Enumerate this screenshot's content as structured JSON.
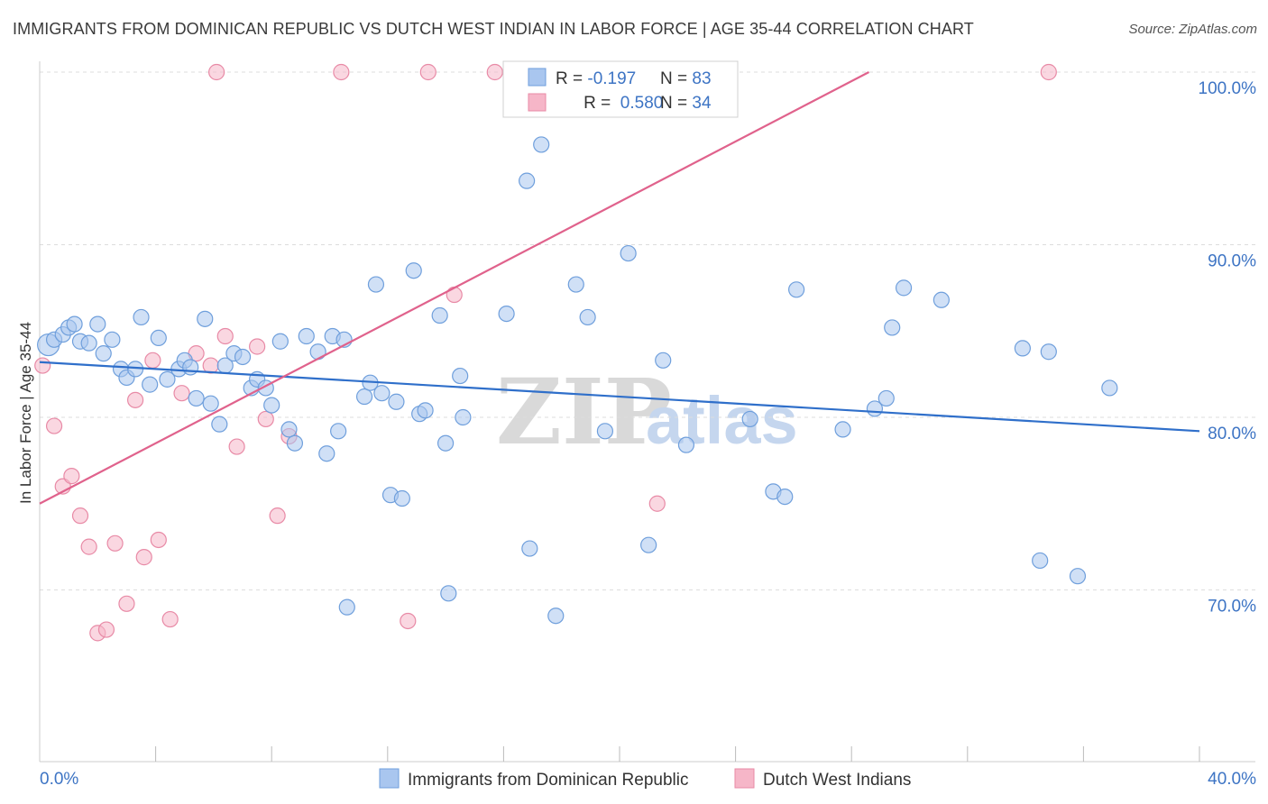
{
  "header": {
    "title": "IMMIGRANTS FROM DOMINICAN REPUBLIC VS DUTCH WEST INDIAN IN LABOR FORCE | AGE 35-44 CORRELATION CHART",
    "source": "Source: ZipAtlas.com"
  },
  "watermark": {
    "zip": "ZIP",
    "atlas": "atlas"
  },
  "legend": {
    "rows": [
      {
        "r_label": "R = ",
        "r_value": "-0.197",
        "n_label": "N = ",
        "n_value": "83"
      },
      {
        "r_label": "R = ",
        "r_value": " 0.580",
        "n_label": "N = ",
        "n_value": "34"
      }
    ]
  },
  "chart_data": {
    "type": "scatter",
    "ylabel": "In Labor Force | Age 35-44",
    "xlabel": "",
    "xlim": [
      0,
      40
    ],
    "ylim": [
      60,
      100
    ],
    "x_tick_labels": [
      {
        "value": 0,
        "label": "0.0%"
      },
      {
        "value": 40,
        "label": "40.0%"
      }
    ],
    "x_minor_ticks": [
      4,
      8,
      12,
      16,
      20,
      24,
      28,
      32,
      36,
      40
    ],
    "y_ticks": [
      {
        "value": 100,
        "label": "100.0%"
      },
      {
        "value": 90,
        "label": "90.0%"
      },
      {
        "value": 80,
        "label": "80.0%"
      },
      {
        "value": 70,
        "label": "70.0%"
      }
    ],
    "grid": true,
    "colors": {
      "blue_fill": "#a9c6ef",
      "blue_stroke": "#6f9fdc",
      "blue_line": "#2f6fca",
      "pink_fill": "#f6b6c8",
      "pink_stroke": "#e88aa6",
      "pink_line": "#e0628c",
      "grid": "#dddddd",
      "tick_label": "#3d74c4"
    },
    "series": [
      {
        "name": "Immigrants from Dominican Republic",
        "color": "#a9c6ef",
        "trend": {
          "x": [
            0,
            40
          ],
          "y": [
            83.2,
            79.2
          ]
        },
        "points": [
          {
            "x": 0.3,
            "y": 84.2
          },
          {
            "x": 0.5,
            "y": 84.5
          },
          {
            "x": 0.8,
            "y": 84.8
          },
          {
            "x": 1.0,
            "y": 85.2
          },
          {
            "x": 1.2,
            "y": 85.4
          },
          {
            "x": 1.4,
            "y": 84.4
          },
          {
            "x": 1.7,
            "y": 84.3
          },
          {
            "x": 2.0,
            "y": 85.4
          },
          {
            "x": 2.2,
            "y": 83.7
          },
          {
            "x": 2.5,
            "y": 84.5
          },
          {
            "x": 2.8,
            "y": 82.8
          },
          {
            "x": 3.0,
            "y": 82.3
          },
          {
            "x": 3.3,
            "y": 82.8
          },
          {
            "x": 3.5,
            "y": 85.8
          },
          {
            "x": 3.8,
            "y": 81.9
          },
          {
            "x": 4.1,
            "y": 84.6
          },
          {
            "x": 4.4,
            "y": 82.2
          },
          {
            "x": 4.8,
            "y": 82.8
          },
          {
            "x": 5.0,
            "y": 83.3
          },
          {
            "x": 5.2,
            "y": 82.9
          },
          {
            "x": 5.4,
            "y": 81.1
          },
          {
            "x": 5.7,
            "y": 85.7
          },
          {
            "x": 5.9,
            "y": 80.8
          },
          {
            "x": 6.2,
            "y": 79.6
          },
          {
            "x": 6.4,
            "y": 83.0
          },
          {
            "x": 6.7,
            "y": 83.7
          },
          {
            "x": 7.0,
            "y": 83.5
          },
          {
            "x": 7.3,
            "y": 81.7
          },
          {
            "x": 7.5,
            "y": 82.2
          },
          {
            "x": 7.8,
            "y": 81.7
          },
          {
            "x": 8.0,
            "y": 80.7
          },
          {
            "x": 8.3,
            "y": 84.4
          },
          {
            "x": 8.6,
            "y": 79.3
          },
          {
            "x": 8.8,
            "y": 78.5
          },
          {
            "x": 9.2,
            "y": 84.7
          },
          {
            "x": 9.6,
            "y": 83.8
          },
          {
            "x": 9.9,
            "y": 77.9
          },
          {
            "x": 10.1,
            "y": 84.7
          },
          {
            "x": 10.3,
            "y": 79.2
          },
          {
            "x": 10.5,
            "y": 84.5
          },
          {
            "x": 10.6,
            "y": 69.0
          },
          {
            "x": 11.2,
            "y": 81.2
          },
          {
            "x": 11.4,
            "y": 82.0
          },
          {
            "x": 11.8,
            "y": 81.4
          },
          {
            "x": 11.6,
            "y": 87.7
          },
          {
            "x": 12.1,
            "y": 75.5
          },
          {
            "x": 12.5,
            "y": 75.3
          },
          {
            "x": 12.3,
            "y": 80.9
          },
          {
            "x": 12.9,
            "y": 88.5
          },
          {
            "x": 13.1,
            "y": 80.2
          },
          {
            "x": 13.3,
            "y": 80.4
          },
          {
            "x": 14.0,
            "y": 78.5
          },
          {
            "x": 13.8,
            "y": 85.9
          },
          {
            "x": 14.5,
            "y": 82.4
          },
          {
            "x": 14.1,
            "y": 69.8
          },
          {
            "x": 14.6,
            "y": 80.0
          },
          {
            "x": 16.1,
            "y": 86.0
          },
          {
            "x": 16.8,
            "y": 93.7
          },
          {
            "x": 16.9,
            "y": 72.4
          },
          {
            "x": 17.3,
            "y": 95.8
          },
          {
            "x": 17.8,
            "y": 68.5
          },
          {
            "x": 18.5,
            "y": 87.7
          },
          {
            "x": 18.9,
            "y": 85.8
          },
          {
            "x": 19.5,
            "y": 79.2
          },
          {
            "x": 20.3,
            "y": 89.5
          },
          {
            "x": 21.0,
            "y": 72.6
          },
          {
            "x": 21.5,
            "y": 83.3
          },
          {
            "x": 22.3,
            "y": 78.4
          },
          {
            "x": 24.5,
            "y": 79.9
          },
          {
            "x": 25.3,
            "y": 75.7
          },
          {
            "x": 25.7,
            "y": 75.4
          },
          {
            "x": 26.1,
            "y": 87.4
          },
          {
            "x": 27.7,
            "y": 79.3
          },
          {
            "x": 28.8,
            "y": 80.5
          },
          {
            "x": 29.2,
            "y": 81.1
          },
          {
            "x": 29.4,
            "y": 85.2
          },
          {
            "x": 29.8,
            "y": 87.5
          },
          {
            "x": 31.1,
            "y": 86.8
          },
          {
            "x": 33.9,
            "y": 84.0
          },
          {
            "x": 34.5,
            "y": 71.7
          },
          {
            "x": 34.8,
            "y": 83.8
          },
          {
            "x": 35.8,
            "y": 70.8
          },
          {
            "x": 36.9,
            "y": 81.7
          }
        ]
      },
      {
        "name": "Dutch West Indians",
        "color": "#f6b6c8",
        "trend": {
          "x": [
            0,
            28.6
          ],
          "y": [
            75.0,
            100.0
          ]
        },
        "points": [
          {
            "x": 0.1,
            "y": 83.0
          },
          {
            "x": 0.5,
            "y": 79.5
          },
          {
            "x": 0.8,
            "y": 76.0
          },
          {
            "x": 1.1,
            "y": 76.6
          },
          {
            "x": 1.4,
            "y": 74.3
          },
          {
            "x": 1.7,
            "y": 72.5
          },
          {
            "x": 2.0,
            "y": 67.5
          },
          {
            "x": 2.3,
            "y": 67.7
          },
          {
            "x": 2.6,
            "y": 72.7
          },
          {
            "x": 3.0,
            "y": 69.2
          },
          {
            "x": 3.3,
            "y": 81.0
          },
          {
            "x": 3.6,
            "y": 71.9
          },
          {
            "x": 3.9,
            "y": 83.3
          },
          {
            "x": 4.1,
            "y": 72.9
          },
          {
            "x": 4.5,
            "y": 68.3
          },
          {
            "x": 4.9,
            "y": 81.4
          },
          {
            "x": 5.4,
            "y": 83.7
          },
          {
            "x": 5.9,
            "y": 83.0
          },
          {
            "x": 6.1,
            "y": 100.0
          },
          {
            "x": 6.4,
            "y": 84.7
          },
          {
            "x": 6.8,
            "y": 78.3
          },
          {
            "x": 7.5,
            "y": 84.1
          },
          {
            "x": 7.8,
            "y": 79.9
          },
          {
            "x": 8.2,
            "y": 74.3
          },
          {
            "x": 8.6,
            "y": 78.9
          },
          {
            "x": 10.4,
            "y": 100.0
          },
          {
            "x": 12.7,
            "y": 68.2
          },
          {
            "x": 13.4,
            "y": 100.0
          },
          {
            "x": 14.3,
            "y": 87.1
          },
          {
            "x": 15.7,
            "y": 100.0
          },
          {
            "x": 16.3,
            "y": 100.0
          },
          {
            "x": 17.6,
            "y": 100.0
          },
          {
            "x": 21.3,
            "y": 75.0
          },
          {
            "x": 34.8,
            "y": 100.0
          }
        ]
      }
    ]
  }
}
